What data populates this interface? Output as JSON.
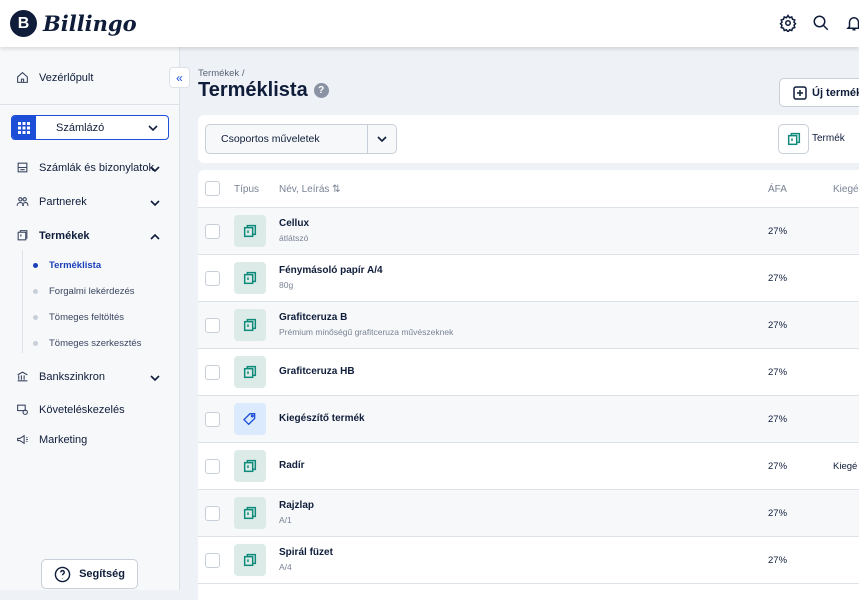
{
  "app": {
    "logo_letter": "B",
    "logo_text": "Billingo"
  },
  "header": {
    "icons": [
      "gear-icon",
      "search-icon",
      "bell-icon"
    ]
  },
  "sidebar": {
    "dashboard": "Vezérlőpult",
    "selector": "Számlázó",
    "items": [
      {
        "label": "Számlák és bizonylatok",
        "icon": "invoice-icon",
        "expanded": false
      },
      {
        "label": "Partnerek",
        "icon": "partners-icon",
        "expanded": false
      },
      {
        "label": "Termékek",
        "icon": "products-icon",
        "expanded": true
      }
    ],
    "subitems": [
      {
        "label": "Terméklista",
        "active": true
      },
      {
        "label": "Forgalmi lekérdezés",
        "active": false
      },
      {
        "label": "Tömeges feltöltés",
        "active": false
      },
      {
        "label": "Tömeges szerkesztés",
        "active": false
      }
    ],
    "items2": [
      {
        "label": "Bankszinkron",
        "icon": "bank-icon",
        "expanded": false
      },
      {
        "label": "Követeléskezelés",
        "icon": "debt-icon"
      },
      {
        "label": "Marketing",
        "icon": "megaphone-icon"
      }
    ],
    "help": "Segítség",
    "collapse": "«"
  },
  "page": {
    "breadcrumb": "Termékek /",
    "title": "Terméklista",
    "new_button": "Új termék",
    "bulk_actions": "Csoportos műveletek",
    "type_filter": "Termék"
  },
  "table": {
    "columns": {
      "type": "Típus",
      "name": "Név, Leírás ⇅",
      "vat": "ÁFA",
      "extra": "Kiegé"
    },
    "rows": [
      {
        "name": "Cellux",
        "desc": "átlátszó",
        "vat": "27%",
        "extra": "",
        "type": "product"
      },
      {
        "name": "Fénymásoló papír A/4",
        "desc": "80g",
        "vat": "27%",
        "extra": "",
        "type": "product"
      },
      {
        "name": "Grafitceruza B",
        "desc": "Prémium minőségű grafitceruza művészeknek",
        "vat": "27%",
        "extra": "",
        "type": "product"
      },
      {
        "name": "Grafitceruza HB",
        "desc": "",
        "vat": "27%",
        "extra": "",
        "type": "product"
      },
      {
        "name": "Kiegészítő termék",
        "desc": "",
        "vat": "27%",
        "extra": "",
        "type": "accessory"
      },
      {
        "name": "Radír",
        "desc": "",
        "vat": "27%",
        "extra": "Kiegé",
        "type": "product"
      },
      {
        "name": "Rajzlap",
        "desc": "A/1",
        "vat": "27%",
        "extra": "",
        "type": "product"
      },
      {
        "name": "Spirál füzet",
        "desc": "A/4",
        "vat": "27%",
        "extra": "",
        "type": "product"
      }
    ]
  },
  "colors": {
    "primary": "#1c4ed8",
    "navy": "#0f1d3a",
    "teal": "#0d8a7a"
  }
}
